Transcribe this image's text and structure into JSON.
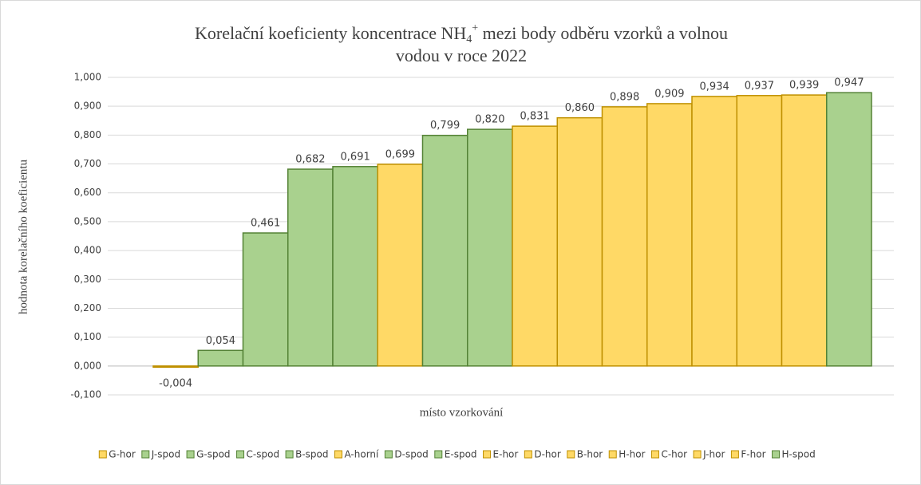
{
  "chart_data": {
    "type": "bar",
    "title_parts": [
      "Korelační koeficienty koncentrace NH",
      "4",
      "+",
      " mezi body odběru vzorků a volnou",
      "vodou v roce 2022"
    ],
    "x_label": "místo vzorkování",
    "y_label": "hodnota korelačního koeficientu",
    "ylim": [
      -0.1,
      1.0
    ],
    "yticks": [
      {
        "value": -0.1,
        "label": "-0,100"
      },
      {
        "value": 0,
        "label": "0,000"
      },
      {
        "value": 0.1,
        "label": "0,100"
      },
      {
        "value": 0.2,
        "label": "0,200"
      },
      {
        "value": 0.3,
        "label": "0,300"
      },
      {
        "value": 0.4,
        "label": "0,400"
      },
      {
        "value": 0.5,
        "label": "0,500"
      },
      {
        "value": 0.6,
        "label": "0,600"
      },
      {
        "value": 0.7,
        "label": "0,700"
      },
      {
        "value": 0.8,
        "label": "0,800"
      },
      {
        "value": 0.9,
        "label": "0,900"
      },
      {
        "value": 1.0,
        "label": "1,000"
      }
    ],
    "grid": true,
    "legend": "bottom",
    "series": [
      {
        "name": "G-hor",
        "color": "#FFD966",
        "values": [
          -0.004
        ],
        "value_labels": [
          "-0,004"
        ]
      },
      {
        "name": "J-spod",
        "color": "#A9D18E",
        "values": [
          0.054
        ],
        "value_labels": [
          "0,054"
        ]
      },
      {
        "name": "G-spod",
        "color": "#A9D18E",
        "values": [
          0.461
        ],
        "value_labels": [
          "0,461"
        ]
      },
      {
        "name": "C-spod",
        "color": "#A9D18E",
        "values": [
          0.682
        ],
        "value_labels": [
          "0,682"
        ]
      },
      {
        "name": "B-spod",
        "color": "#A9D18E",
        "values": [
          0.691
        ],
        "value_labels": [
          "0,691"
        ]
      },
      {
        "name": "A-horní",
        "color": "#FFD966",
        "values": [
          0.699
        ],
        "value_labels": [
          "0,699"
        ]
      },
      {
        "name": "D-spod",
        "color": "#A9D18E",
        "values": [
          0.799
        ],
        "value_labels": [
          "0,799"
        ]
      },
      {
        "name": "E-spod",
        "color": "#A9D18E",
        "values": [
          0.82
        ],
        "value_labels": [
          "0,820"
        ]
      },
      {
        "name": "E-hor",
        "color": "#FFD966",
        "values": [
          0.831
        ],
        "value_labels": [
          "0,831"
        ]
      },
      {
        "name": "D-hor",
        "color": "#FFD966",
        "values": [
          0.86
        ],
        "value_labels": [
          "0,860"
        ]
      },
      {
        "name": "B-hor",
        "color": "#FFD966",
        "values": [
          0.898
        ],
        "value_labels": [
          "0,898"
        ]
      },
      {
        "name": "H-hor",
        "color": "#FFD966",
        "values": [
          0.909
        ],
        "value_labels": [
          "0,909"
        ]
      },
      {
        "name": "C-hor",
        "color": "#FFD966",
        "values": [
          0.934
        ],
        "value_labels": [
          "0,934"
        ]
      },
      {
        "name": "J-hor",
        "color": "#FFD966",
        "values": [
          0.937
        ],
        "value_labels": [
          "0,937"
        ]
      },
      {
        "name": "F-hor",
        "color": "#FFD966",
        "values": [
          0.939
        ],
        "value_labels": [
          "0,939"
        ]
      },
      {
        "name": "H-spod",
        "color": "#A9D18E",
        "values": [
          0.947
        ],
        "value_labels": [
          "0,947"
        ]
      }
    ]
  }
}
